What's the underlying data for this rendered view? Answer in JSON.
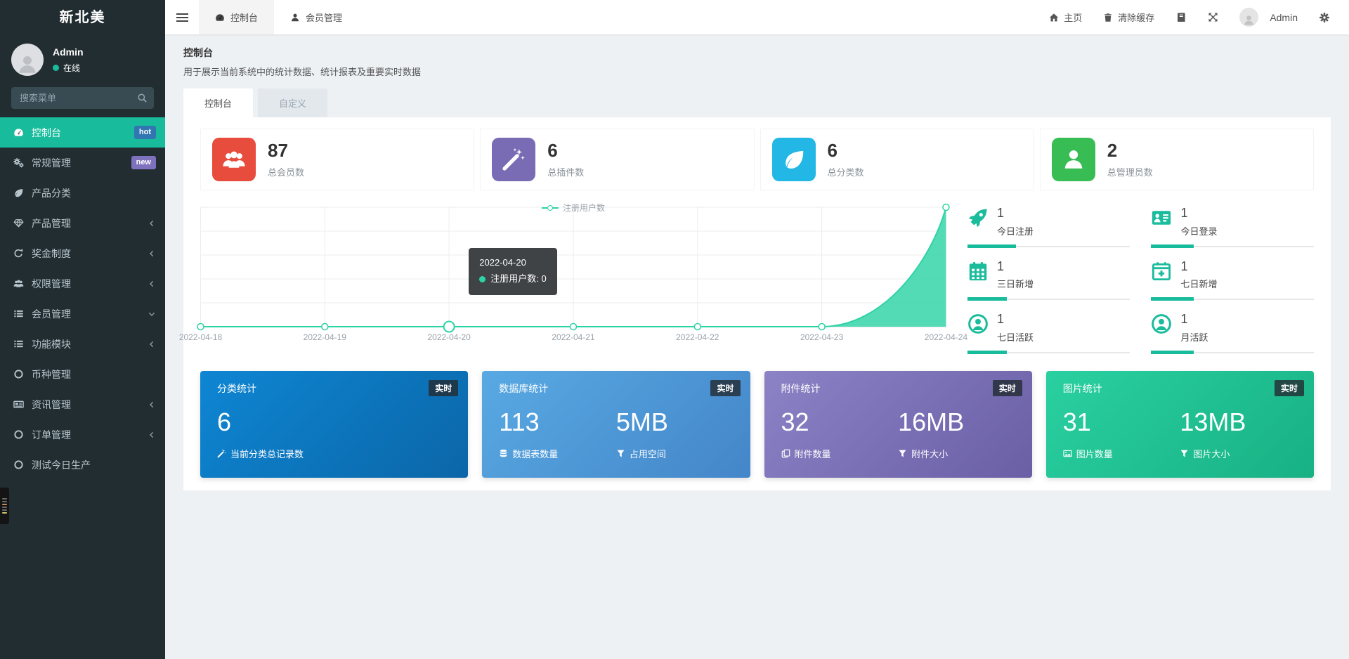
{
  "sidebar": {
    "logo": "新北美",
    "user": {
      "name": "Admin",
      "status": "在线",
      "status_color": "#18bc9c"
    },
    "search_placeholder": "搜索菜单",
    "active_color": "#18bc9c",
    "items": [
      {
        "label": "控制台",
        "icon": "tachometer-icon",
        "badge": "hot",
        "badge_color": "#3276b1"
      },
      {
        "label": "常规管理",
        "icon": "cogs-icon",
        "badge": "new",
        "badge_color": "#7e72bd"
      },
      {
        "label": "产品分类",
        "icon": "leaf-icon"
      },
      {
        "label": "产品管理",
        "icon": "diamond-icon",
        "chevron": "left"
      },
      {
        "label": "奖金制度",
        "icon": "recycle-icon",
        "chevron": "left"
      },
      {
        "label": "权限管理",
        "icon": "users-icon",
        "chevron": "left"
      },
      {
        "label": "会员管理",
        "icon": "list-icon",
        "chevron": "down"
      },
      {
        "label": "功能模块",
        "icon": "list-icon",
        "chevron": "left"
      },
      {
        "label": "币种管理",
        "icon": "circle-icon"
      },
      {
        "label": "资讯管理",
        "icon": "newspaper-icon",
        "chevron": "left"
      },
      {
        "label": "订单管理",
        "icon": "circle-icon",
        "chevron": "left"
      },
      {
        "label": "测试今日生产",
        "icon": "circle-icon"
      }
    ]
  },
  "topbar": {
    "tabs": [
      {
        "label": "控制台",
        "icon": "tachometer-icon"
      },
      {
        "label": "会员管理",
        "icon": "user-icon"
      }
    ],
    "home_label": "主页",
    "clear_cache_label": "清除缓存",
    "username": "Admin"
  },
  "header": {
    "title": "控制台",
    "subtitle": "用于展示当前系统中的统计数据、统计报表及重要实时数据"
  },
  "content_tabs": [
    {
      "label": "控制台",
      "active": true
    },
    {
      "label": "自定义",
      "active": false
    }
  ],
  "stats": [
    {
      "value": "87",
      "label": "总会员数",
      "color": "#e74c3c",
      "icon": "users-icon"
    },
    {
      "value": "6",
      "label": "总插件数",
      "color": "#7a6bb5",
      "icon": "magic-wand-icon"
    },
    {
      "value": "6",
      "label": "总分类数",
      "color": "#23b7e5",
      "icon": "leaf-icon"
    },
    {
      "value": "2",
      "label": "总管理员数",
      "color": "#38bd55",
      "icon": "user-icon"
    }
  ],
  "chart_data": {
    "type": "area",
    "title": "注册用户数",
    "x": [
      "2022-04-18",
      "2022-04-19",
      "2022-04-20",
      "2022-04-21",
      "2022-04-22",
      "2022-04-23",
      "2022-04-24"
    ],
    "series": [
      {
        "name": "注册用户数",
        "values": [
          0,
          0,
          0,
          0,
          0,
          0,
          1
        ]
      }
    ],
    "ylim": [
      0,
      1
    ],
    "grid": true,
    "legend_position": "top-center",
    "line_color": "#2ed3a5",
    "fill_color": "#40d7ae",
    "highlight_index": 2,
    "tooltip": {
      "title": "2022-04-20",
      "label": "注册用户数",
      "value": "0"
    }
  },
  "mini_stats": [
    {
      "value": "1",
      "label": "今日注册",
      "icon": "rocket-icon",
      "progress": 30
    },
    {
      "value": "1",
      "label": "今日登录",
      "icon": "id-card-icon",
      "progress": 26
    },
    {
      "value": "1",
      "label": "三日新增",
      "icon": "calendar-icon",
      "progress": 24
    },
    {
      "value": "1",
      "label": "七日新增",
      "icon": "calendar-plus-icon",
      "progress": 26
    },
    {
      "value": "1",
      "label": "七日活跃",
      "icon": "user-circle-icon",
      "progress": 24
    },
    {
      "value": "1",
      "label": "月活跃",
      "icon": "user-circle-icon",
      "progress": 26
    }
  ],
  "cards": [
    {
      "title": "分类统计",
      "badge": "实时",
      "gradient": [
        "#0e86d3",
        "#0b66a8"
      ],
      "metrics": [
        {
          "value": "6",
          "label": "当前分类总记录数",
          "icon": "magic-wand-icon"
        }
      ]
    },
    {
      "title": "数据库统计",
      "badge": "实时",
      "gradient": [
        "#58a9e3",
        "#4486c9"
      ],
      "metrics": [
        {
          "value": "113",
          "label": "数据表数量",
          "icon": "database-icon"
        },
        {
          "value": "5MB",
          "label": "占用空间",
          "icon": "filter-icon"
        }
      ]
    },
    {
      "title": "附件统计",
      "badge": "实时",
      "gradient": [
        "#8c82c6",
        "#6a5fa5"
      ],
      "metrics": [
        {
          "value": "32",
          "label": "附件数量",
          "icon": "copy-icon"
        },
        {
          "value": "16MB",
          "label": "附件大小",
          "icon": "filter-icon"
        }
      ]
    },
    {
      "title": "图片统计",
      "badge": "实时",
      "gradient": [
        "#2ad0a1",
        "#17b184"
      ],
      "metrics": [
        {
          "value": "31",
          "label": "图片数量",
          "icon": "image-icon"
        },
        {
          "value": "13MB",
          "label": "图片大小",
          "icon": "filter-icon"
        }
      ]
    }
  ]
}
